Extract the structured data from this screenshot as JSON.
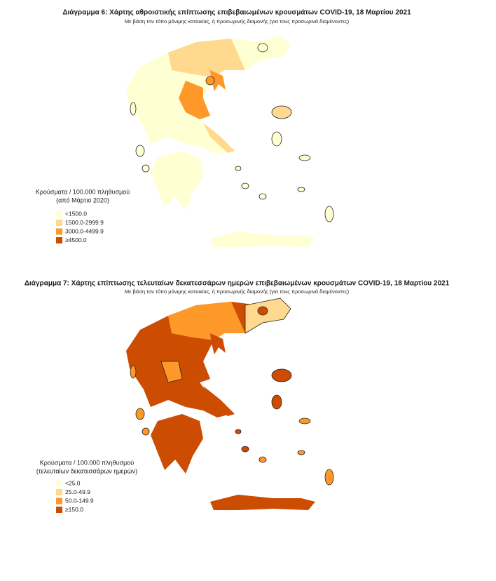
{
  "maps": [
    {
      "title": "Διάγραμμα 6: Χάρτης αθροιστικής επίπτωσης επιβεβαιωμένων κρουσμάτων COVID-19, 18 Μαρτίου 2021",
      "subtitle": "Με βάση τον τόπο μόνιμης κατοικίας, ή προσωρινής διαμονής (για τους προσωρινά διαμένοντες)",
      "legend": {
        "title": [
          "Κρούσματα / 100.000 πληθυσμού",
          "(από Μάρτιο 2020)"
        ],
        "items": [
          {
            "label": "<1500.0",
            "color": "#ffffd4"
          },
          {
            "label": "1500.0-2999.9",
            "color": "#fed98e"
          },
          {
            "label": "3000.0-4499.9",
            "color": "#fe9929"
          },
          {
            "label": "≥4500.0",
            "color": "#cc4c02"
          }
        ]
      }
    },
    {
      "title": "Διάγραμμα 7: Χάρτης επίπτωσης τελευταίων δεκατεσσάρων ημερών επιβεβαιωμένων κρουσμάτων COVID-19, 18 Μαρτίου 2021",
      "subtitle": "Με βάση τον τόπο μόνιμης κατοικίας, ή προσωρινής διαμονής (για τους προσωρινά διαμένοντες)",
      "legend": {
        "title": [
          "Κρούσματα / 100.000 πληθυσμού",
          "(τελευταίων δεκατεσσάρων ημερών)"
        ],
        "items": [
          {
            "label": "<25.0",
            "color": "#ffffd4"
          },
          {
            "label": "25.0-49.9",
            "color": "#fed98e"
          },
          {
            "label": "50.0-149.9",
            "color": "#fe9929"
          },
          {
            "label": "≥150.0",
            "color": "#cc4c02"
          }
        ]
      }
    }
  ]
}
